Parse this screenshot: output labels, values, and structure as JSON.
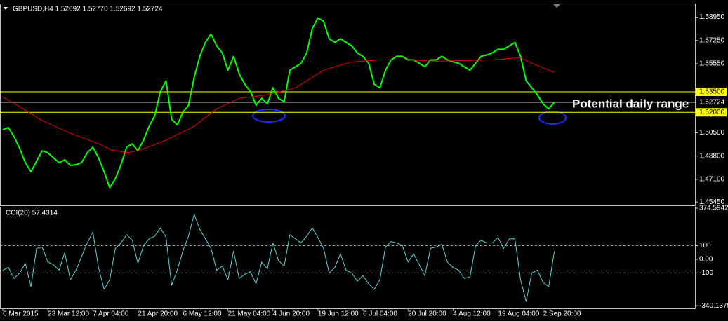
{
  "chart_data": [
    {
      "type": "line",
      "title": "GBPUSD,H4  1.52692 1.52770 1.52692 1.52724",
      "annotation": "Potential daily range",
      "xlim": [
        -0.5,
        123
      ],
      "ylim": [
        1.452,
        1.599
      ],
      "yticks": [
        {
          "value": 1.5895,
          "label": "1.58950"
        },
        {
          "value": 1.5725,
          "label": "1.57250"
        },
        {
          "value": 1.5555,
          "label": "1.55550"
        },
        {
          "value": 1.505,
          "label": "1.50500"
        },
        {
          "value": 1.488,
          "label": "1.48800"
        },
        {
          "value": 1.471,
          "label": "1.47100"
        },
        {
          "value": 1.4545,
          "label": "1.45450"
        }
      ],
      "hlines": [
        {
          "value": 1.535,
          "label": "1.53500",
          "color": "#ffff00"
        },
        {
          "value": 1.52724,
          "label": "1.52724",
          "color": "#9a9a9a"
        },
        {
          "value": 1.52,
          "label": "1.52000",
          "color": "#ffff00"
        }
      ],
      "series": [
        {
          "color": "#00ff00",
          "values": [
            1.5073,
            1.5088,
            1.5022,
            1.4935,
            1.4832,
            1.4766,
            1.4843,
            1.4919,
            1.4904,
            1.4868,
            1.4832,
            1.4853,
            1.4812,
            1.4817,
            1.4832,
            1.4904,
            1.4945,
            1.4868,
            1.4766,
            1.4649,
            1.4715,
            1.4817,
            1.4945,
            1.497,
            1.4919,
            1.4996,
            1.5098,
            1.5175,
            1.5353,
            1.543,
            1.5149,
            1.5108,
            1.52,
            1.5251,
            1.5456,
            1.5609,
            1.5711,
            1.5772,
            1.5685,
            1.5634,
            1.5507,
            1.5609,
            1.5481,
            1.5405,
            1.5353,
            1.5251,
            1.5302,
            1.5261,
            1.5379,
            1.5302,
            1.5277,
            1.5507,
            1.5532,
            1.5558,
            1.5634,
            1.5813,
            1.589,
            1.5865,
            1.5737,
            1.5711,
            1.5737,
            1.5711,
            1.5685,
            1.5634,
            1.5609,
            1.5558,
            1.5405,
            1.5379,
            1.5507,
            1.5583,
            1.5609,
            1.5609,
            1.5583,
            1.5583,
            1.5558,
            1.5532,
            1.5583,
            1.5583,
            1.5609,
            1.5583,
            1.5568,
            1.5558,
            1.5532,
            1.5507,
            1.5558,
            1.5609,
            1.5619,
            1.5634,
            1.566,
            1.566,
            1.5685,
            1.5711,
            1.5609,
            1.543,
            1.5379,
            1.5328,
            1.5261,
            1.5226,
            1.5272
          ]
        },
        {
          "color": "#e00000",
          "x": [
            0,
            3,
            7,
            12,
            17,
            19,
            22,
            24,
            29,
            34,
            38,
            42,
            47,
            52,
            57,
            62,
            67,
            72,
            77,
            82,
            87,
            92,
            94,
            98
          ],
          "values": [
            1.5312,
            1.5241,
            1.5139,
            1.5047,
            1.497,
            1.4929,
            1.4904,
            1.4919,
            1.4996,
            1.5098,
            1.5226,
            1.5302,
            1.5328,
            1.5379,
            1.5507,
            1.5568,
            1.5583,
            1.5583,
            1.5573,
            1.5578,
            1.5583,
            1.5599,
            1.5558,
            1.5491
          ]
        }
      ]
    },
    {
      "type": "line",
      "title": "CCI(20) 57.4314",
      "xlim": [
        -0.5,
        123
      ],
      "ylim": [
        -360,
        380
      ],
      "yticks": [
        374.5942,
        100,
        {
          "value": 0,
          "label": "0.00"
        },
        -100,
        -340.1375
      ],
      "levels": [
        100,
        -100
      ],
      "xticks": [
        {
          "value": 0,
          "label": "6 Mar 2015"
        },
        {
          "value": 8,
          "label": "23 Mar 12:00"
        },
        {
          "value": 16,
          "label": "7 Apr 04:00"
        },
        {
          "value": 24,
          "label": "21 Apr 20:00"
        },
        {
          "value": 32,
          "label": "6 May 12:00"
        },
        {
          "value": 40,
          "label": "21 May 04:00"
        },
        {
          "value": 48,
          "label": "4 Jun 20:00"
        },
        {
          "value": 56,
          "label": "19 Jun 12:00"
        },
        {
          "value": 64,
          "label": "6 Jul 04:00"
        },
        {
          "value": 72,
          "label": "20 Jul 20:00"
        },
        {
          "value": 80,
          "label": "4 Aug 12:00"
        },
        {
          "value": 88,
          "label": "19 Aug 04:00"
        },
        {
          "value": 96,
          "label": "2 Sep 20:00"
        }
      ],
      "series": [
        {
          "color": "#5fd3d3",
          "values": [
            -80,
            -60,
            -140,
            -100,
            -30,
            -200,
            80,
            90,
            -20,
            -40,
            -80,
            50,
            -150,
            -80,
            20,
            120,
            200,
            -60,
            -220,
            -150,
            80,
            120,
            180,
            140,
            -30,
            100,
            150,
            170,
            230,
            160,
            -190,
            -80,
            60,
            170,
            330,
            220,
            150,
            80,
            -80,
            -50,
            -150,
            60,
            -140,
            -110,
            -90,
            -180,
            -20,
            -70,
            120,
            -10,
            -50,
            180,
            150,
            120,
            170,
            230,
            160,
            80,
            -100,
            -60,
            40,
            -80,
            -100,
            -160,
            -120,
            -180,
            -220,
            -150,
            90,
            130,
            120,
            100,
            -20,
            40,
            -40,
            -120,
            80,
            90,
            110,
            -20,
            -60,
            -80,
            -140,
            -130,
            100,
            140,
            120,
            120,
            160,
            80,
            150,
            150,
            -150,
            -310,
            -100,
            -80,
            -170,
            -200,
            57.4314
          ]
        }
      ]
    }
  ]
}
